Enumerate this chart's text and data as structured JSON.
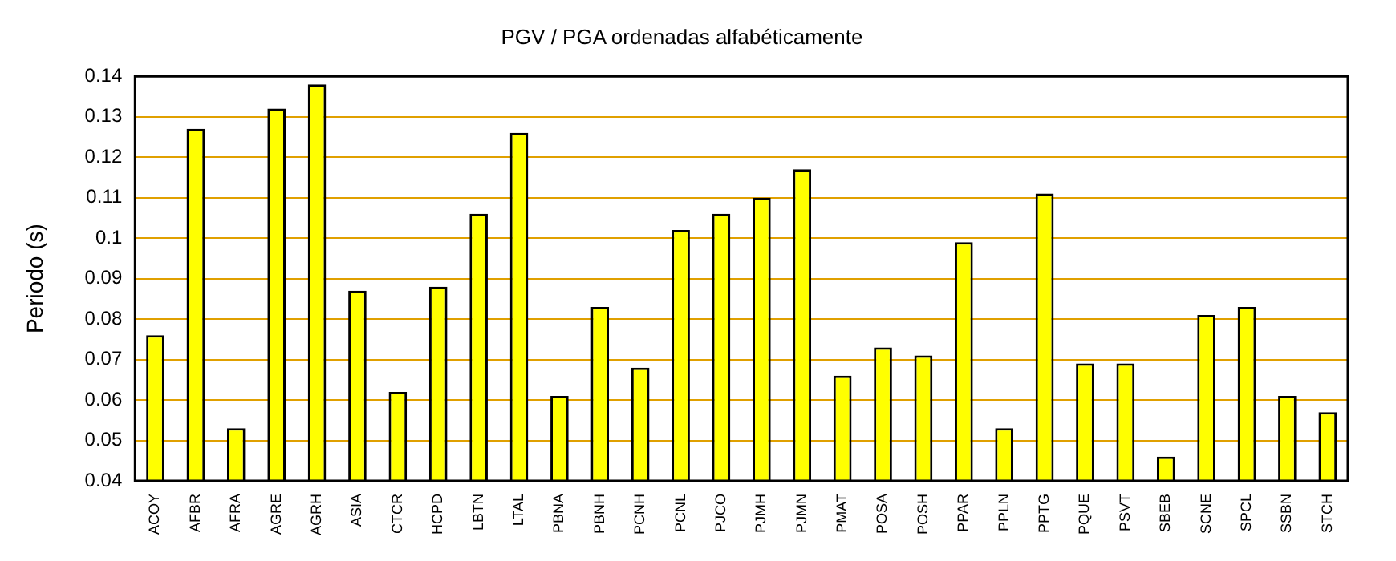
{
  "chart_data": {
    "type": "bar",
    "title": "PGV / PGA ordenadas alfabéticamente",
    "ylabel": "Periodo (s)",
    "categories": [
      "ACOY",
      "AFBR",
      "AFRA",
      "AGRE",
      "AGRH",
      "ASIA",
      "CTCR",
      "HCPD",
      "LBTN",
      "LTAL",
      "PBNA",
      "PBNH",
      "PCNH",
      "PCNL",
      "PJCO",
      "PJMH",
      "PJMN",
      "PMAT",
      "POSA",
      "POSH",
      "PPAR",
      "PPLN",
      "PPTG",
      "PQUE",
      "PSVT",
      "SBEB",
      "SCNE",
      "SPCL",
      "SSBN",
      "STCH"
    ],
    "values": [
      0.076,
      0.127,
      0.053,
      0.132,
      0.138,
      0.087,
      0.062,
      0.088,
      0.106,
      0.126,
      0.061,
      0.083,
      0.068,
      0.102,
      0.106,
      0.11,
      0.117,
      0.066,
      0.073,
      0.071,
      0.099,
      0.053,
      0.111,
      0.069,
      0.069,
      0.046,
      0.081,
      0.083,
      0.061,
      0.057
    ],
    "color": "#ffff00",
    "ylim": [
      0.04,
      0.14
    ],
    "yticks": [
      0.04,
      0.05,
      0.06,
      0.07,
      0.08,
      0.09,
      0.1,
      0.11,
      0.12,
      0.13,
      0.14
    ],
    "grid": "y",
    "legend": false
  }
}
